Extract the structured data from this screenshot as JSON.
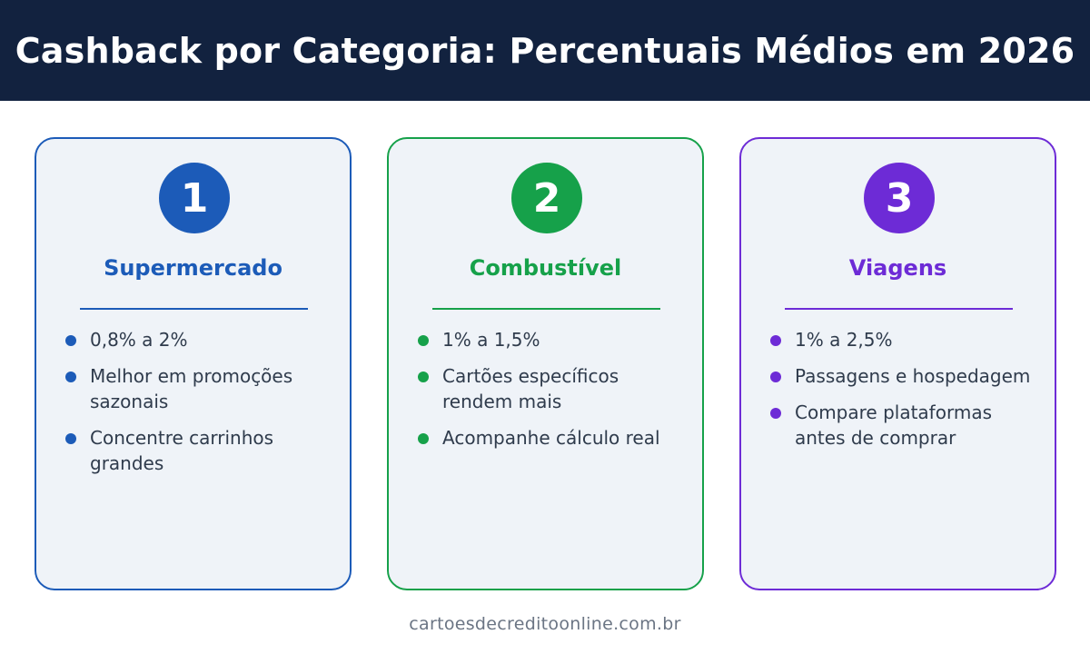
{
  "title": "Cashback por Categoria: Percentuais Médios em 2026",
  "cards": [
    {
      "number": "1",
      "title": "Supermercado",
      "color": "#1c5bb8",
      "items": [
        "0,8% a 2%",
        "Melhor em promoções sazonais",
        "Concentre carrinhos grandes"
      ]
    },
    {
      "number": "2",
      "title": "Combustível",
      "color": "#16a14a",
      "items": [
        "1% a 1,5%",
        "Cartões específicos rendem mais",
        "Acompanhe cálculo real"
      ]
    },
    {
      "number": "3",
      "title": "Viagens",
      "color": "#6d2bd6",
      "items": [
        "1% a 2,5%",
        "Passagens e hospedagem",
        "Compare plataformas antes de comprar"
      ]
    }
  ],
  "footer": "cartoesdecreditoonline.com.br"
}
